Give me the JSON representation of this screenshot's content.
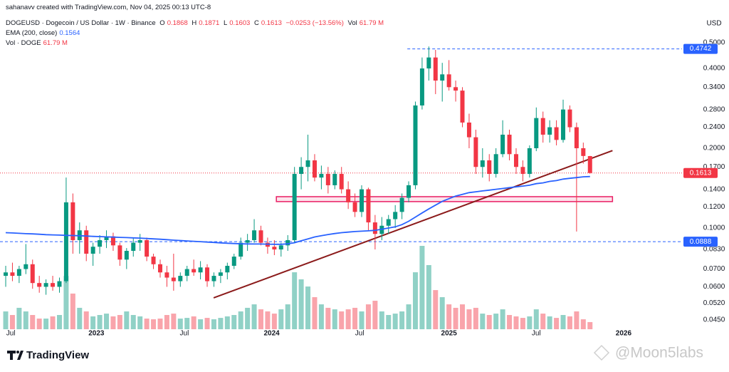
{
  "chart_data": {
    "type": "candlestick",
    "header": {
      "credit": "sahanavv created with TradingView.com, Nov 04, 2025 00:13 UTC-8",
      "symbol": "DOGEUSD · Dogecoin / US Dollar · 1W · Binance",
      "ohlc": [
        {
          "label": "O",
          "value": 0.1868
        },
        {
          "label": "H",
          "value": 0.1871
        },
        {
          "label": "L",
          "value": 0.1603
        },
        {
          "label": "C",
          "value": 0.1613
        }
      ],
      "change": "−0.0253 (−13.56%)",
      "vol_label": "Vol",
      "vol": "61.79 M"
    },
    "axis_unit": "USD",
    "log_scale": true,
    "grid": false,
    "ylim": [
      0.0415,
      0.725
    ],
    "yticks": [
      {
        "value": 0.045,
        "label": "0.0450"
      },
      {
        "value": 0.052,
        "label": "0.0520"
      },
      {
        "value": 0.06,
        "label": "0.0600"
      },
      {
        "value": 0.07,
        "label": "0.0700"
      },
      {
        "value": 0.083,
        "label": "0.0830"
      },
      {
        "value": 0.1,
        "label": "0.1000"
      },
      {
        "value": 0.12,
        "label": "0.1200"
      },
      {
        "value": 0.14,
        "label": "0.1400"
      },
      {
        "value": 0.17,
        "label": "0.1700"
      },
      {
        "value": 0.2,
        "label": "0.2000"
      },
      {
        "value": 0.24,
        "label": "0.2400"
      },
      {
        "value": 0.28,
        "label": "0.2800"
      },
      {
        "value": 0.34,
        "label": "0.3400"
      },
      {
        "value": 0.4,
        "label": "0.4000"
      },
      {
        "value": 0.5,
        "label": "0.5000"
      }
    ],
    "xlim": [
      -0.85,
      100.7
    ],
    "xticks": [
      {
        "value": 0.75,
        "label": "Jul"
      },
      {
        "value": 13.5,
        "label": "2023"
      },
      {
        "value": 26.6,
        "label": "Jul"
      },
      {
        "value": 39.6,
        "label": "2024"
      },
      {
        "value": 52.7,
        "label": "Jul"
      },
      {
        "value": 66,
        "label": "2025"
      },
      {
        "value": 79,
        "label": "Jul"
      },
      {
        "value": 92,
        "label": "2026"
      }
    ],
    "series": [
      {
        "name": "DOGEUSD",
        "up_color": "#089981",
        "down_color": "#f23645",
        "ohlc": [
          [
            0.066,
            0.072,
            0.06,
            0.068
          ],
          [
            0.068,
            0.074,
            0.063,
            0.066
          ],
          [
            0.066,
            0.072,
            0.062,
            0.07
          ],
          [
            0.07,
            0.087,
            0.067,
            0.073
          ],
          [
            0.073,
            0.076,
            0.059,
            0.062
          ],
          [
            0.062,
            0.066,
            0.057,
            0.06
          ],
          [
            0.06,
            0.064,
            0.056,
            0.062
          ],
          [
            0.062,
            0.066,
            0.058,
            0.06
          ],
          [
            0.06,
            0.065,
            0.057,
            0.063
          ],
          [
            0.063,
            0.155,
            0.062,
            0.125
          ],
          [
            0.125,
            0.135,
            0.08,
            0.09
          ],
          [
            0.09,
            0.105,
            0.08,
            0.098
          ],
          [
            0.098,
            0.102,
            0.075,
            0.08
          ],
          [
            0.08,
            0.088,
            0.072,
            0.085
          ],
          [
            0.085,
            0.094,
            0.08,
            0.09
          ],
          [
            0.09,
            0.098,
            0.084,
            0.093
          ],
          [
            0.093,
            0.096,
            0.082,
            0.086
          ],
          [
            0.086,
            0.088,
            0.072,
            0.076
          ],
          [
            0.076,
            0.084,
            0.07,
            0.082
          ],
          [
            0.082,
            0.092,
            0.078,
            0.088
          ],
          [
            0.088,
            0.095,
            0.082,
            0.09
          ],
          [
            0.09,
            0.092,
            0.075,
            0.078
          ],
          [
            0.078,
            0.08,
            0.07,
            0.073
          ],
          [
            0.073,
            0.076,
            0.065,
            0.068
          ],
          [
            0.068,
            0.072,
            0.06,
            0.065
          ],
          [
            0.065,
            0.08,
            0.058,
            0.063
          ],
          [
            0.063,
            0.068,
            0.06,
            0.066
          ],
          [
            0.066,
            0.072,
            0.063,
            0.07
          ],
          [
            0.07,
            0.076,
            0.066,
            0.068
          ],
          [
            0.068,
            0.075,
            0.064,
            0.071
          ],
          [
            0.071,
            0.073,
            0.06,
            0.063
          ],
          [
            0.063,
            0.068,
            0.06,
            0.066
          ],
          [
            0.066,
            0.07,
            0.062,
            0.068
          ],
          [
            0.068,
            0.074,
            0.064,
            0.072
          ],
          [
            0.072,
            0.08,
            0.07,
            0.078
          ],
          [
            0.078,
            0.092,
            0.076,
            0.088
          ],
          [
            0.088,
            0.095,
            0.082,
            0.09
          ],
          [
            0.09,
            0.108,
            0.088,
            0.098
          ],
          [
            0.098,
            0.102,
            0.086,
            0.088
          ],
          [
            0.088,
            0.092,
            0.08,
            0.085
          ],
          [
            0.085,
            0.09,
            0.079,
            0.083
          ],
          [
            0.083,
            0.088,
            0.078,
            0.086
          ],
          [
            0.086,
            0.094,
            0.082,
            0.09
          ],
          [
            0.09,
            0.17,
            0.088,
            0.16
          ],
          [
            0.16,
            0.185,
            0.14,
            0.17
          ],
          [
            0.17,
            0.225,
            0.15,
            0.18
          ],
          [
            0.18,
            0.19,
            0.15,
            0.155
          ],
          [
            0.155,
            0.172,
            0.14,
            0.16
          ],
          [
            0.16,
            0.17,
            0.135,
            0.145
          ],
          [
            0.145,
            0.165,
            0.14,
            0.16
          ],
          [
            0.16,
            0.17,
            0.135,
            0.14
          ],
          [
            0.14,
            0.15,
            0.118,
            0.125
          ],
          [
            0.125,
            0.135,
            0.11,
            0.115
          ],
          [
            0.115,
            0.145,
            0.11,
            0.14
          ],
          [
            0.14,
            0.142,
            0.098,
            0.105
          ],
          [
            0.105,
            0.112,
            0.083,
            0.095
          ],
          [
            0.095,
            0.11,
            0.09,
            0.102
          ],
          [
            0.102,
            0.112,
            0.095,
            0.108
          ],
          [
            0.108,
            0.122,
            0.1,
            0.115
          ],
          [
            0.115,
            0.135,
            0.108,
            0.13
          ],
          [
            0.13,
            0.15,
            0.125,
            0.145
          ],
          [
            0.145,
            0.3,
            0.14,
            0.29
          ],
          [
            0.29,
            0.44,
            0.28,
            0.4
          ],
          [
            0.4,
            0.484,
            0.36,
            0.44
          ],
          [
            0.44,
            0.47,
            0.32,
            0.36
          ],
          [
            0.36,
            0.42,
            0.3,
            0.38
          ],
          [
            0.38,
            0.43,
            0.33,
            0.34
          ],
          [
            0.34,
            0.36,
            0.3,
            0.33
          ],
          [
            0.33,
            0.34,
            0.24,
            0.25
          ],
          [
            0.25,
            0.27,
            0.2,
            0.22
          ],
          [
            0.22,
            0.235,
            0.16,
            0.17
          ],
          [
            0.17,
            0.2,
            0.155,
            0.18
          ],
          [
            0.18,
            0.19,
            0.15,
            0.16
          ],
          [
            0.16,
            0.2,
            0.155,
            0.19
          ],
          [
            0.19,
            0.255,
            0.185,
            0.225
          ],
          [
            0.225,
            0.235,
            0.18,
            0.19
          ],
          [
            0.19,
            0.2,
            0.16,
            0.17
          ],
          [
            0.17,
            0.18,
            0.15,
            0.16
          ],
          [
            0.16,
            0.205,
            0.155,
            0.2
          ],
          [
            0.2,
            0.285,
            0.195,
            0.26
          ],
          [
            0.26,
            0.275,
            0.21,
            0.225
          ],
          [
            0.225,
            0.255,
            0.21,
            0.24
          ],
          [
            0.24,
            0.255,
            0.205,
            0.215
          ],
          [
            0.215,
            0.305,
            0.21,
            0.28
          ],
          [
            0.28,
            0.29,
            0.23,
            0.24
          ],
          [
            0.24,
            0.25,
            0.097,
            0.2
          ],
          [
            0.2,
            0.21,
            0.175,
            0.187
          ],
          [
            0.1868,
            0.1871,
            0.1603,
            0.1613
          ]
        ]
      }
    ],
    "ema": {
      "name": "EMA (200, close)",
      "last": 0.1564,
      "color": "#2962ff",
      "values": [
        0.096,
        0.0958,
        0.0955,
        0.0952,
        0.095,
        0.0947,
        0.0944,
        0.0942,
        0.094,
        0.0938,
        0.0937,
        0.0935,
        0.0933,
        0.093,
        0.0928,
        0.0926,
        0.0924,
        0.0922,
        0.092,
        0.0918,
        0.0916,
        0.0913,
        0.091,
        0.0907,
        0.0904,
        0.09,
        0.0897,
        0.0894,
        0.0891,
        0.0888,
        0.0885,
        0.0882,
        0.0879,
        0.0876,
        0.0874,
        0.0872,
        0.0871,
        0.087,
        0.087,
        0.0869,
        0.0868,
        0.0868,
        0.0872,
        0.088,
        0.0895,
        0.091,
        0.0925,
        0.0935,
        0.0945,
        0.0953,
        0.096,
        0.0965,
        0.097,
        0.0973,
        0.0976,
        0.098,
        0.099,
        0.1,
        0.101,
        0.103,
        0.106,
        0.11,
        0.114,
        0.118,
        0.122,
        0.126,
        0.129,
        0.132,
        0.134,
        0.136,
        0.137,
        0.138,
        0.139,
        0.14,
        0.141,
        0.142,
        0.143,
        0.144,
        0.145,
        0.147,
        0.148,
        0.15,
        0.151,
        0.153,
        0.154,
        0.155,
        0.156,
        0.1564
      ]
    },
    "volume": {
      "name": "Vol · DOGE",
      "vlim": [
        0,
        800
      ],
      "up_color": "rgba(8,153,129,0.45)",
      "down_color": "rgba(242,54,69,0.45)",
      "values": [
        154,
        123,
        185,
        154,
        123,
        92,
        92,
        111,
        123,
        460,
        308,
        185,
        154,
        111,
        123,
        135,
        111,
        123,
        154,
        123,
        111,
        92,
        86,
        92,
        123,
        135,
        92,
        98,
        111,
        86,
        98,
        86,
        98,
        111,
        123,
        154,
        185,
        215,
        172,
        154,
        135,
        172,
        215,
        492,
        431,
        369,
        277,
        215,
        185,
        172,
        154,
        172,
        185,
        154,
        215,
        246,
        154,
        123,
        135,
        154,
        215,
        492,
        720,
        554,
        338,
        277,
        215,
        185,
        215,
        172,
        185,
        135,
        123,
        135,
        172,
        123,
        111,
        98,
        111,
        172,
        135,
        111,
        98,
        123,
        111,
        154,
        86,
        61.79
      ]
    },
    "price_levels": [
      {
        "value": 0.4742,
        "color": "#2962ff",
        "from": 59.8
      },
      {
        "value": 0.0888,
        "color": "#2962ff",
        "from": -0.85
      },
      {
        "value": 0.1613,
        "color": "#f23645",
        "from": -0.85
      }
    ],
    "trendline": {
      "color": "#8b1a1a",
      "x": [
        30.96,
        90.35
      ],
      "y": [
        0.0545,
        0.196
      ]
    },
    "zone": {
      "color": "#e91e63",
      "x": [
        40.3,
        90.35
      ],
      "y": [
        0.1258,
        0.1313
      ]
    },
    "brand": "TradingView",
    "watermark": "@Moon5labs"
  }
}
